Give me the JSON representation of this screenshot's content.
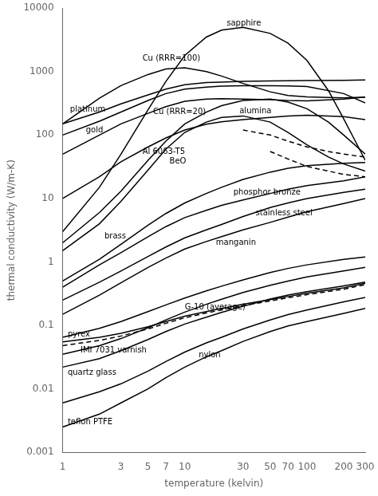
{
  "chart_data": {
    "type": "line",
    "xlabel": "temperature (kelvin)",
    "ylabel": "thermal conductivity (W/m-K)",
    "log": true,
    "grid": false,
    "xlim": [
      1,
      300
    ],
    "ylim": [
      0.001,
      10000
    ],
    "xticks": [
      1,
      3,
      5,
      7,
      10,
      30,
      50,
      70,
      100,
      200,
      300
    ],
    "yticks": [
      0.001,
      0.01,
      0.1,
      1,
      10,
      100,
      1000,
      10000
    ],
    "series": [
      {
        "color": "black",
        "line_style": "solid",
        "x": [
          1,
          2,
          3,
          5,
          7,
          10,
          15,
          20,
          30,
          50,
          70,
          100,
          150,
          200,
          300
        ],
        "values": [
          3,
          15,
          50,
          250,
          700,
          1800,
          3500,
          4500,
          5000,
          4000,
          2800,
          1500,
          500,
          180,
          40
        ]
      },
      {
        "color": "black",
        "line_style": "solid",
        "x": [
          1,
          2,
          3,
          5,
          7,
          10,
          15,
          20,
          30,
          50,
          70,
          100,
          150,
          200,
          300
        ],
        "values": [
          150,
          380,
          600,
          900,
          1100,
          1150,
          1000,
          850,
          650,
          480,
          420,
          400,
          390,
          385,
          395
        ]
      },
      {
        "color": "black",
        "line_style": "solid",
        "x": [
          1,
          2,
          3,
          5,
          7,
          10,
          15,
          20,
          30,
          50,
          70,
          100,
          200,
          300
        ],
        "values": [
          150,
          230,
          310,
          430,
          530,
          620,
          670,
          680,
          700,
          710,
          715,
          720,
          730,
          740
        ]
      },
      {
        "color": "black",
        "line_style": "solid",
        "x": [
          1,
          2,
          3,
          5,
          7,
          10,
          15,
          20,
          30,
          50,
          70,
          100,
          200,
          300
        ],
        "values": [
          100,
          165,
          230,
          350,
          450,
          530,
          570,
          590,
          600,
          600,
          595,
          580,
          450,
          320
        ]
      },
      {
        "color": "black",
        "line_style": "solid",
        "x": [
          1,
          2,
          3,
          5,
          7,
          10,
          15,
          20,
          30,
          50,
          70,
          100,
          200,
          300
        ],
        "values": [
          50,
          100,
          150,
          220,
          280,
          340,
          370,
          375,
          370,
          360,
          350,
          345,
          370,
          395
        ]
      },
      {
        "color": "black",
        "line_style": "solid",
        "x": [
          1,
          2,
          3,
          5,
          7,
          10,
          15,
          20,
          30,
          50,
          70,
          100,
          200,
          300
        ],
        "values": [
          10,
          22,
          38,
          65,
          90,
          120,
          148,
          162,
          175,
          190,
          200,
          205,
          195,
          175
        ]
      },
      {
        "color": "black",
        "line_style": "solid",
        "x": [
          1,
          2,
          3,
          5,
          7,
          10,
          15,
          20,
          30,
          50,
          70,
          100,
          150,
          200,
          300
        ],
        "values": [
          2,
          6,
          13,
          40,
          80,
          150,
          230,
          290,
          350,
          370,
          330,
          260,
          160,
          100,
          50
        ]
      },
      {
        "color": "black",
        "line_style": "solid",
        "x": [
          1,
          2,
          3,
          5,
          7,
          10,
          15,
          20,
          30,
          50,
          70,
          100,
          150,
          200,
          300
        ],
        "values": [
          1.5,
          4,
          9,
          28,
          60,
          110,
          160,
          190,
          200,
          160,
          110,
          70,
          45,
          35,
          27
        ]
      },
      {
        "color": "black",
        "line_style": "solid",
        "x": [
          1,
          2,
          3,
          5,
          7,
          10,
          15,
          20,
          30,
          50,
          70,
          100,
          200,
          300
        ],
        "values": [
          0.4,
          0.9,
          1.4,
          2.5,
          3.6,
          5.0,
          6.5,
          7.8,
          9.5,
          12,
          14,
          16,
          19,
          22
        ]
      },
      {
        "color": "black",
        "line_style": "solid",
        "x": [
          1,
          2,
          3,
          5,
          7,
          10,
          15,
          20,
          30,
          50,
          70,
          100,
          200,
          300
        ],
        "values": [
          0.5,
          1.1,
          1.9,
          3.8,
          5.8,
          8.5,
          12,
          15,
          20,
          26,
          30,
          33,
          36,
          37
        ]
      },
      {
        "color": "black",
        "line_style": "solid",
        "x": [
          1,
          2,
          3,
          5,
          7,
          10,
          15,
          20,
          30,
          50,
          70,
          100,
          200,
          300
        ],
        "values": [
          0.15,
          0.3,
          0.47,
          0.82,
          1.15,
          1.6,
          2.1,
          2.5,
          3.2,
          4.2,
          5.1,
          6.2,
          8.3,
          10.0
        ]
      },
      {
        "color": "black",
        "line_style": "solid",
        "x": [
          1,
          2,
          3,
          5,
          7,
          10,
          15,
          20,
          30,
          50,
          70,
          100,
          200,
          300
        ],
        "values": [
          0.25,
          0.48,
          0.72,
          1.22,
          1.72,
          2.4,
          3.2,
          3.9,
          5.2,
          7.2,
          8.5,
          10.0,
          12.5,
          14.0
        ]
      },
      {
        "color": "black",
        "line_style": "solid",
        "x": [
          1,
          2,
          3,
          5,
          7,
          10,
          15,
          20,
          30,
          50,
          70,
          100,
          200,
          300
        ],
        "values": [
          0.055,
          0.065,
          0.075,
          0.095,
          0.115,
          0.14,
          0.165,
          0.185,
          0.215,
          0.255,
          0.285,
          0.32,
          0.39,
          0.46
        ]
      },
      {
        "color": "black",
        "line_style": "dashed",
        "x": [
          1,
          2,
          3,
          5,
          7,
          10,
          15,
          20,
          30,
          50,
          70,
          100,
          200,
          300
        ],
        "values": [
          0.048,
          0.058,
          0.068,
          0.088,
          0.108,
          0.132,
          0.157,
          0.175,
          0.205,
          0.243,
          0.272,
          0.305,
          0.372,
          0.438
        ]
      },
      {
        "color": "black",
        "line_style": "solid",
        "x": [
          1,
          2,
          3,
          5,
          7,
          10,
          15,
          20,
          30,
          50,
          70,
          100,
          200,
          300
        ],
        "values": [
          0.065,
          0.09,
          0.115,
          0.165,
          0.21,
          0.27,
          0.35,
          0.415,
          0.52,
          0.68,
          0.79,
          0.9,
          1.1,
          1.2
        ]
      },
      {
        "color": "black",
        "line_style": "solid",
        "x": [
          1,
          2,
          3,
          5,
          7,
          10,
          15,
          20,
          30,
          50,
          70,
          100,
          200,
          300
        ],
        "values": [
          0.035,
          0.048,
          0.062,
          0.092,
          0.122,
          0.162,
          0.215,
          0.258,
          0.33,
          0.43,
          0.5,
          0.58,
          0.72,
          0.82
        ]
      },
      {
        "color": "black",
        "line_style": "solid",
        "x": [
          1,
          2,
          3,
          5,
          7,
          10,
          15,
          20,
          30,
          50,
          70,
          100,
          200,
          300
        ],
        "values": [
          0.022,
          0.03,
          0.04,
          0.06,
          0.08,
          0.105,
          0.135,
          0.16,
          0.2,
          0.26,
          0.3,
          0.34,
          0.42,
          0.48
        ]
      },
      {
        "color": "black",
        "line_style": "solid",
        "x": [
          1,
          2,
          3,
          5,
          7,
          10,
          15,
          20,
          30,
          50,
          70,
          100,
          200,
          300
        ],
        "values": [
          0.006,
          0.009,
          0.012,
          0.019,
          0.027,
          0.038,
          0.053,
          0.065,
          0.088,
          0.122,
          0.148,
          0.175,
          0.235,
          0.275
        ]
      },
      {
        "color": "black",
        "line_style": "solid",
        "x": [
          1,
          2,
          3,
          5,
          7,
          10,
          15,
          20,
          30,
          50,
          70,
          100,
          200,
          300
        ],
        "values": [
          0.0025,
          0.004,
          0.006,
          0.01,
          0.015,
          0.022,
          0.032,
          0.04,
          0.056,
          0.08,
          0.098,
          0.115,
          0.155,
          0.185
        ]
      },
      {
        "color": "black",
        "line_style": "dashed",
        "x": [
          30,
          50,
          70,
          100,
          150,
          200,
          300
        ],
        "values": [
          120,
          100,
          80,
          65,
          55,
          50,
          45
        ]
      },
      {
        "color": "black",
        "line_style": "dashed",
        "x": [
          50,
          70,
          100,
          150,
          200,
          300
        ],
        "values": [
          55,
          42,
          32,
          27,
          24,
          22
        ]
      }
    ],
    "annotations": [
      {
        "text": "sapphire",
        "x": 22,
        "y": 5800
      },
      {
        "text": "Cu (RRR=100)",
        "x": 4.5,
        "y": 1600
      },
      {
        "text": "platinum",
        "x": 1.15,
        "y": 250
      },
      {
        "text": "gold",
        "x": 1.55,
        "y": 120
      },
      {
        "text": "Cu (RRR=20)",
        "x": 5.5,
        "y": 230
      },
      {
        "text": "Al 6063-T5",
        "x": 4.5,
        "y": 55
      },
      {
        "text": "BeO",
        "x": 7.5,
        "y": 38
      },
      {
        "text": "alumina",
        "x": 28,
        "y": 240
      },
      {
        "text": "phosphor bronze",
        "x": 25,
        "y": 12.5
      },
      {
        "text": "brass",
        "x": 2.2,
        "y": 2.5
      },
      {
        "text": "manganin",
        "x": 18,
        "y": 2.0
      },
      {
        "text": "stainless steel",
        "x": 38,
        "y": 5.8
      },
      {
        "text": "G-10 (average)",
        "x": 10,
        "y": 0.195
      },
      {
        "text": "pyrex",
        "x": 1.1,
        "y": 0.072
      },
      {
        "text": "IMI 7031 varnish",
        "x": 1.4,
        "y": 0.04
      },
      {
        "text": "quartz glass",
        "x": 1.1,
        "y": 0.018
      },
      {
        "text": "nylon",
        "x": 13,
        "y": 0.034
      },
      {
        "text": "teflon PTFE",
        "x": 1.1,
        "y": 0.003
      }
    ]
  }
}
